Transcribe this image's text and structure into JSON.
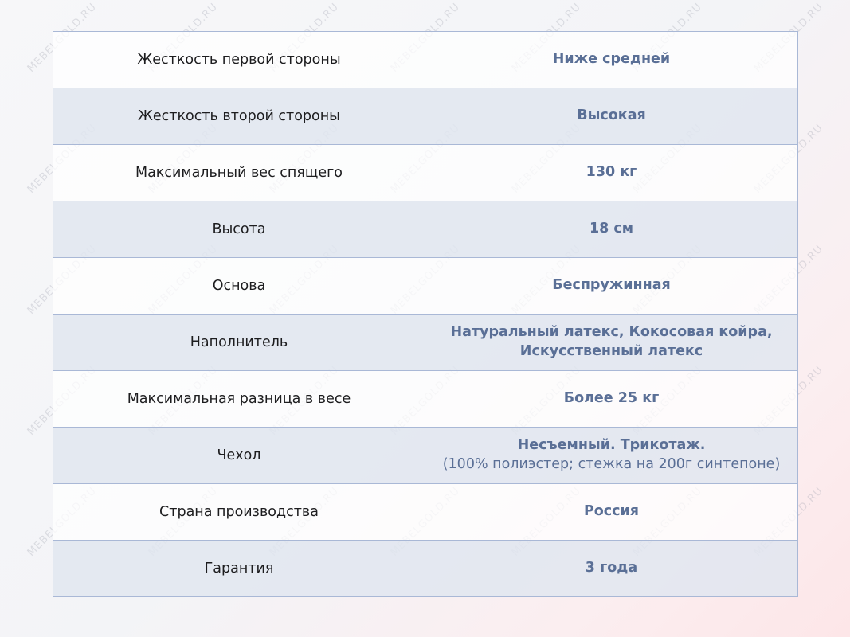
{
  "watermark": "MEBELGOLD.RU",
  "colors": {
    "value_text": "#5a6f96",
    "border": "#a9b8d6",
    "alt_row": "#e0e6f0"
  },
  "rows": [
    {
      "label": "Жесткость первой стороны",
      "value": "Ниже средней"
    },
    {
      "label": "Жесткость второй стороны",
      "value": "Высокая"
    },
    {
      "label": "Максимальный вес спящего",
      "value": "130 кг"
    },
    {
      "label": "Высота",
      "value": "18 см"
    },
    {
      "label": "Основа",
      "value": "Беспружинная"
    },
    {
      "label": "Наполнитель",
      "value": "Натуральный латекс, Кокосовая койра, Искусственный латекс"
    },
    {
      "label": "Максимальная разница в весе",
      "value": "Более 25 кг"
    },
    {
      "label": "Чехол",
      "value": "Несъемный. Трикотаж.",
      "sub": "(100% полиэстер; стежка на 200г синтепоне)"
    },
    {
      "label": "Страна производства",
      "value": "Россия"
    },
    {
      "label": "Гарантия",
      "value": "3 года"
    }
  ]
}
